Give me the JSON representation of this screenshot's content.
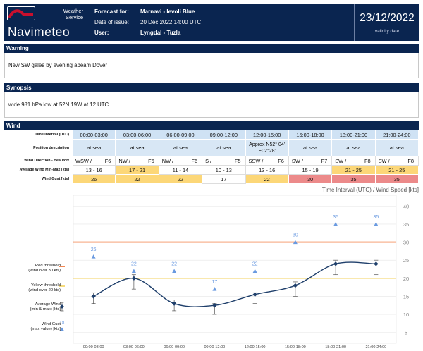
{
  "header": {
    "logo_service": "Weather\nService",
    "logo_name": "Navimeteo",
    "forecast_for_label": "Forecast for:",
    "forecast_for_value": "Marnavi - Ievoli Blue",
    "issue_label": "Date of issue:",
    "issue_value": "20 Dec 2022 14:00 UTC",
    "user_label": "User:",
    "user_value": "Lyngdal - Tuzla",
    "validity_date": "23/12/2022",
    "validity_label": "validity date"
  },
  "warning": {
    "title": "Warning",
    "text": "New SW gales by evening abeam Dover"
  },
  "synopsis": {
    "title": "Synopsis",
    "text": "wide 981 hPa low at 52N 19W at 12 UTC"
  },
  "wind": {
    "title": "Wind",
    "row_labels": {
      "interval": "Time Interval (UTC)",
      "position": "Position description",
      "direction": "Wind Direction - Beaufort",
      "avg": "Average Wind Min-Max [kts]",
      "gust": "Wind Gust [kts]"
    },
    "columns": [
      {
        "interval": "00:00-03:00",
        "position": "at sea",
        "dir": "WSW",
        "bf": "F6",
        "avg": "13 - 16",
        "avg_level": "none",
        "gust": "26",
        "gust_level": "yellow"
      },
      {
        "interval": "03:00-06:00",
        "position": "at sea",
        "dir": "NW",
        "bf": "F6",
        "avg": "17 - 21",
        "avg_level": "yellow",
        "gust": "22",
        "gust_level": "yellow"
      },
      {
        "interval": "06:00-09:00",
        "position": "at sea",
        "dir": "NW",
        "bf": "F6",
        "avg": "11 - 14",
        "avg_level": "none",
        "gust": "22",
        "gust_level": "yellow"
      },
      {
        "interval": "09:00-12:00",
        "position": "at sea",
        "dir": "S",
        "bf": "F5",
        "avg": "10 - 13",
        "avg_level": "none",
        "gust": "17",
        "gust_level": "none"
      },
      {
        "interval": "12:00-15:00",
        "position": "Approx N52° 04' E02°28'",
        "dir": "SSW",
        "bf": "F6",
        "avg": "13 - 16",
        "avg_level": "none",
        "gust": "22",
        "gust_level": "yellow"
      },
      {
        "interval": "15:00-18:00",
        "position": "at sea",
        "dir": "SW",
        "bf": "F7",
        "avg": "15 - 19",
        "avg_level": "none",
        "gust": "30",
        "gust_level": "red"
      },
      {
        "interval": "18:00-21:00",
        "position": "at sea",
        "dir": "SW",
        "bf": "F8",
        "avg": "21 - 25",
        "avg_level": "yellow",
        "gust": "35",
        "gust_level": "red"
      },
      {
        "interval": "21:00-24:00",
        "position": "at sea",
        "dir": "SW",
        "bf": "F8",
        "avg": "21 - 25",
        "avg_level": "yellow",
        "gust": "35",
        "gust_level": "red"
      }
    ],
    "legend": {
      "red": "Red threshold\n(wind over 30 kts)",
      "yellow": "Yellow threshold\n(wind over 20 kts)",
      "avg": "Average Wind\n(min & max) [kts]",
      "gust": "Wind Gust\n(max value) [kts]",
      "gust_sample": "18"
    }
  },
  "colors": {
    "navy": "#0a2550",
    "yellow_cell": "#fcd778",
    "red_cell": "#ec8a8a",
    "red_line": "#f06a28",
    "yellow_line": "#f3d25c",
    "line": "#1f3f6b",
    "gust": "#6a9ae0"
  },
  "chart_data": {
    "type": "line",
    "title": "Time Interval (UTC) / Wind Speed [kts]",
    "categories": [
      "00:00-03:00",
      "03:00-06:00",
      "06:00-09:00",
      "09:00-12:00",
      "12:00-15:00",
      "15:00-18:00",
      "18:00-21:00",
      "21:00-24:00"
    ],
    "series": [
      {
        "name": "Average Wind",
        "values": [
          15.0,
          20.0,
          13.0,
          12.5,
          15.5,
          18.0,
          24.0,
          24.0
        ],
        "min": [
          13,
          17,
          11,
          10,
          13,
          15,
          21,
          21
        ],
        "max": [
          16,
          21,
          14,
          13,
          16,
          19,
          25,
          25
        ]
      },
      {
        "name": "Wind Gust",
        "values": [
          26,
          22,
          22,
          17,
          22,
          30,
          35,
          35
        ],
        "labels": [
          "26",
          "22",
          "22",
          "17",
          "22",
          "30",
          "35",
          "35"
        ]
      }
    ],
    "thresholds": {
      "red": 30,
      "yellow": 20
    },
    "yticks": [
      5,
      10,
      15,
      20,
      25,
      30,
      35,
      40
    ],
    "ylim": [
      2,
      43
    ],
    "grid": true
  }
}
